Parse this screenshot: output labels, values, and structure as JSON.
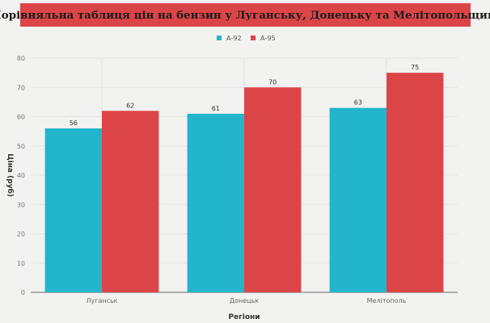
{
  "chart_data": {
    "type": "bar",
    "title": "Порівняльна таблиця цін на бензин у Луганську, Донецьку та Мелітопольщині",
    "categories": [
      "Луганськ",
      "Донецьк",
      "Мелітополь"
    ],
    "series": [
      {
        "name": "А-92",
        "values": [
          56,
          61,
          63
        ],
        "color": "#22b5cc"
      },
      {
        "name": "А-95",
        "values": [
          62,
          70,
          75
        ],
        "color": "#dc4548"
      }
    ],
    "xlabel": "Регіони",
    "ylabel": "Ціна (руб)",
    "ylim": [
      0,
      80
    ],
    "yticks": [
      0,
      10,
      20,
      30,
      40,
      50,
      60,
      70,
      80
    ],
    "grid": true,
    "legend": "top-center",
    "data_labels": true
  }
}
